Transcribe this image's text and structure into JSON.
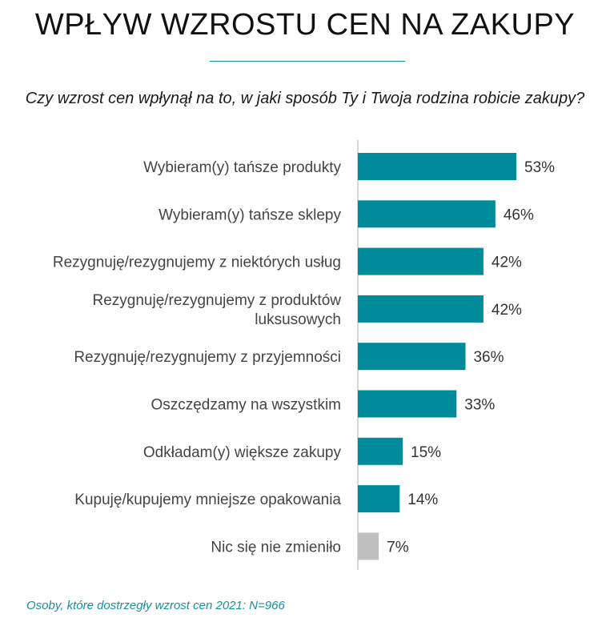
{
  "header": {
    "title": "WPŁYW WZROSTU CEN NA ZAKUPY",
    "question": "Czy wzrost cen wpłynął na to, w jaki sposób Ty i Twoja rodzina robicie zakupy?"
  },
  "footnote": "Osoby, które dostrzegły wzrost cen 2021: N=966",
  "colors": {
    "bar": "#008b9a",
    "bar_muted": "#bfbfbf",
    "axis": "#bbbbbb",
    "accent": "#1a8fa0"
  },
  "chart_data": {
    "type": "bar",
    "orientation": "horizontal",
    "categories": [
      [
        "Wybieram(y) tańsze produkty"
      ],
      [
        "Wybieram(y) tańsze sklepy"
      ],
      [
        "Rezygnuję/rezygnujemy z niektórych usług"
      ],
      [
        "Rezygnuję/rezygnujemy z produktów",
        "luksusowych"
      ],
      [
        "Rezygnuję/rezygnujemy z przyjemności"
      ],
      [
        "Oszczędzamy na wszystkim"
      ],
      [
        "Odkładam(y) większe zakupy"
      ],
      [
        "Kupuję/kupujemy mniejsze opakowania"
      ],
      [
        "Nic się nie zmieniło"
      ]
    ],
    "values": [
      53,
      46,
      42,
      42,
      36,
      33,
      15,
      14,
      7
    ],
    "value_labels": [
      "53%",
      "46%",
      "42%",
      "42%",
      "36%",
      "33%",
      "15%",
      "14%",
      "7%"
    ],
    "highlight": [
      false,
      false,
      false,
      false,
      false,
      false,
      false,
      false,
      true
    ],
    "unit": "%",
    "xlim": [
      0,
      53
    ]
  }
}
